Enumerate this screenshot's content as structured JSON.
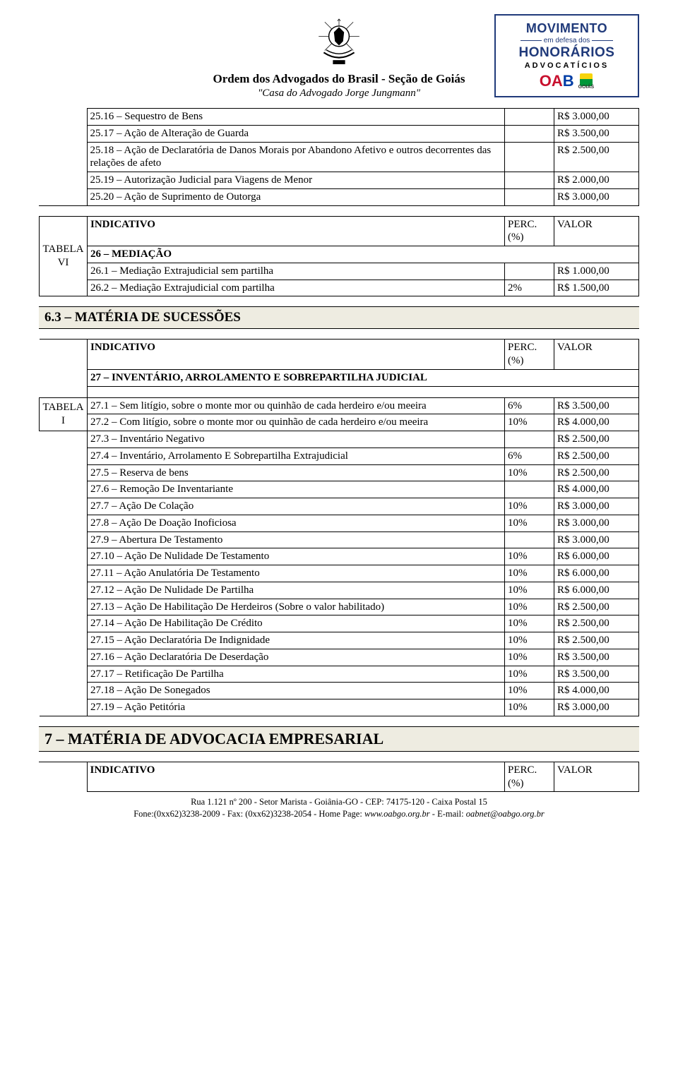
{
  "header": {
    "org_name": "Ordem dos Advogados do Brasil - Seção de Goiás",
    "casa": "\"Casa do Advogado Jorge Jungmann\"",
    "badge": {
      "l1": "MOVIMENTO",
      "l2": "em defesa dos",
      "l3": "HONORÁRIOS",
      "l4": "ADVOCATÍCIOS",
      "goias": "GOIÁS"
    }
  },
  "labels": {
    "indicativo": "INDICATIVO",
    "perc": "PERC. (%)",
    "valor": "VALOR",
    "tabela_vi": "TABELA\nVI",
    "tabela_i": "TABELA\nI"
  },
  "table_top": {
    "rows": [
      {
        "desc": "25.16 – Sequestro de Bens",
        "perc": "",
        "val": "R$ 3.000,00"
      },
      {
        "desc": "25.17 – Ação de Alteração de Guarda",
        "perc": "",
        "val": "R$ 3.500,00"
      },
      {
        "desc": "25.18 – Ação de Declaratória de Danos Morais por Abandono Afetivo e outros decorrentes das relações de afeto",
        "perc": "",
        "val": "R$ 2.500,00"
      },
      {
        "desc": "25.19 – Autorização Judicial para Viagens de Menor",
        "perc": "",
        "val": "R$ 2.000,00"
      },
      {
        "desc": "25.20 – Ação de Suprimento de Outorga",
        "perc": "",
        "val": "R$ 3.000,00"
      }
    ]
  },
  "section26": {
    "title": "26 – MEDIAÇÃO",
    "rows": [
      {
        "desc": "26.1 – Mediação Extrajudicial sem partilha",
        "perc": "",
        "val": "R$ 1.000,00"
      },
      {
        "desc": "26.2 – Mediação Extrajudicial com partilha",
        "perc": "2%",
        "val": "R$ 1.500,00"
      }
    ]
  },
  "band63": "6.3 – MATÉRIA DE SUCESSÕES",
  "section27": {
    "title": "27 – INVENTÁRIO, ARROLAMENTO E SOBREPARTILHA JUDICIAL",
    "rows": [
      {
        "desc": "27.1 – Sem litígio, sobre o monte mor ou quinhão de cada herdeiro e/ou meeira",
        "perc": "6%",
        "val": "R$ 3.500,00"
      },
      {
        "desc": "27.2 – Com litígio, sobre o monte mor ou quinhão de cada herdeiro e/ou meeira",
        "perc": "10%",
        "val": "R$ 4.000,00"
      },
      {
        "desc": "27.3 – Inventário Negativo",
        "perc": "",
        "val": "R$ 2.500,00"
      },
      {
        "desc": "27.4 – Inventário, Arrolamento E Sobrepartilha Extrajudicial",
        "perc": "6%",
        "val": "R$ 2.500,00"
      },
      {
        "desc": "27.5 – Reserva de bens",
        "perc": "10%",
        "val": "R$ 2.500,00"
      },
      {
        "desc": "27.6 – Remoção De Inventariante",
        "perc": "",
        "val": "R$ 4.000,00"
      },
      {
        "desc": "27.7 – Ação De Colação",
        "perc": "10%",
        "val": "R$ 3.000,00"
      },
      {
        "desc": "27.8 – Ação De Doação Inoficiosa",
        "perc": "10%",
        "val": "R$ 3.000,00"
      },
      {
        "desc": "27.9 – Abertura De Testamento",
        "perc": "",
        "val": "R$ 3.000,00"
      },
      {
        "desc": "27.10 – Ação De Nulidade De Testamento",
        "perc": "10%",
        "val": "R$ 6.000,00"
      },
      {
        "desc": "27.11 – Ação Anulatória De Testamento",
        "perc": "10%",
        "val": "R$ 6.000,00"
      },
      {
        "desc": "27.12 – Ação De Nulidade De Partilha",
        "perc": "10%",
        "val": "R$ 6.000,00"
      },
      {
        "desc": "27.13 – Ação De Habilitação De Herdeiros (Sobre o valor habilitado)",
        "perc": "10%",
        "val": "R$ 2.500,00"
      },
      {
        "desc": "27.14 – Ação De Habilitação De Crédito",
        "perc": "10%",
        "val": "R$ 2.500,00"
      },
      {
        "desc": "27.15 – Ação Declaratória De Indignidade",
        "perc": "10%",
        "val": "R$ 2.500,00"
      },
      {
        "desc": "27.16 – Ação Declaratória De Deserdação",
        "perc": "10%",
        "val": "R$ 3.500,00"
      },
      {
        "desc": "27.17 – Retificação De Partilha",
        "perc": "10%",
        "val": "R$ 3.500,00"
      },
      {
        "desc": "27.18 – Ação De Sonegados",
        "perc": "10%",
        "val": "R$ 4.000,00"
      },
      {
        "desc": "27.19 – Ação Petitória",
        "perc": "10%",
        "val": "R$ 3.000,00"
      }
    ]
  },
  "band7": "7 – MATÉRIA DE ADVOCACIA EMPRESARIAL",
  "footer": {
    "line1": "Rua 1.121 nº 200 - Setor Marista - Goiânia-GO - CEP: 74175-120 - Caixa Postal 15",
    "line2_a": "Fone:(0xx62)3238-2009 - Fax: (0xx62)3238-2054 - Home Page: ",
    "line2_b": "www.oabgo.org.br",
    "line2_c": " - E-mail: ",
    "line2_d": "oabnet@oabgo.org.br"
  }
}
